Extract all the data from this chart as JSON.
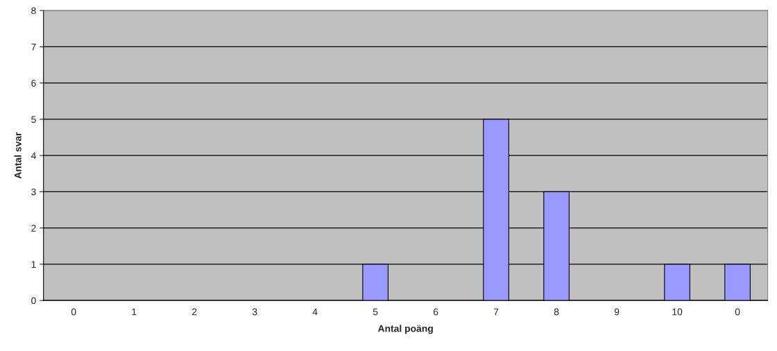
{
  "chart_data": {
    "type": "bar",
    "xlabel": "Antal poäng",
    "ylabel": "Antal svar",
    "categories": [
      "0",
      "1",
      "2",
      "3",
      "4",
      "5",
      "6",
      "7",
      "8",
      "9",
      "10",
      "0"
    ],
    "values": [
      0,
      0,
      0,
      0,
      0,
      1,
      0,
      5,
      3,
      0,
      1,
      1
    ],
    "color": "#9999ff",
    "ylim": [
      0,
      8
    ],
    "yticks": [
      0,
      1,
      2,
      3,
      4,
      5,
      6,
      7,
      8
    ],
    "grid": "y"
  }
}
